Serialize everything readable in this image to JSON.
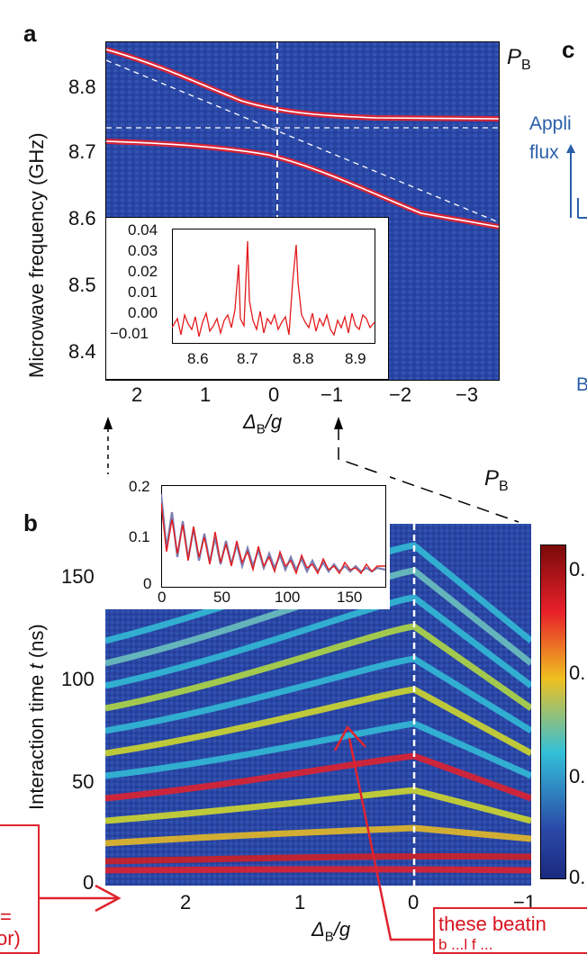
{
  "panel_a": {
    "letter": "a",
    "y_label": "Microwave frequency (GHz)",
    "y_ticks": [
      "8.8",
      "8.7",
      "8.6",
      "8.5",
      "8.4"
    ],
    "x_ticks": [
      "2",
      "1",
      "0",
      "−1",
      "−2",
      "−3"
    ],
    "x_label_main": "Δ",
    "x_label_sub": "B",
    "x_label_rest": "/g",
    "side_label_main": "P",
    "side_label_sub": "B",
    "inset": {
      "y_ticks": [
        "0.04",
        "0.03",
        "0.02",
        "0.01",
        "0.00",
        "−0.01"
      ],
      "x_ticks": [
        "8.6",
        "8.7",
        "8.8",
        "8.9"
      ]
    }
  },
  "panel_b": {
    "letter": "b",
    "y_label_pre": "Interaction time ",
    "y_label_var": "t",
    "y_label_post": " (ns)",
    "y_ticks": [
      "150",
      "100",
      "50",
      "0"
    ],
    "x_ticks": [
      "2",
      "1",
      "0",
      "−1"
    ],
    "x_label_main": "Δ",
    "x_label_sub": "B",
    "x_label_rest": "/g",
    "top_label_main": "P",
    "top_label_sub": "B",
    "inset": {
      "y_ticks": [
        "0.2",
        "0.1",
        "0"
      ],
      "x_ticks": [
        "0",
        "50",
        "100",
        "150"
      ]
    },
    "colorbar_ticks": [
      "0.",
      "0.",
      "0.",
      "0."
    ]
  },
  "panel_c": {
    "letter": "c",
    "applied_text": "Appli",
    "flux_text": "flux",
    "b_text": "B"
  },
  "annotations": {
    "right_box": "these beatin",
    "right_box_line2": "b  ...l  f  ...",
    "left_box_line1": "=",
    "left_box_line2": "or)"
  },
  "colors": {
    "heat_bg": "#2b4aa8",
    "heat_red": "#e8202a",
    "annotation_red": "#e0232f",
    "panel_c_blue": "#2a5ea8",
    "inset_red": "#e31a1c",
    "inset_purple": "#7b7fb3"
  }
}
